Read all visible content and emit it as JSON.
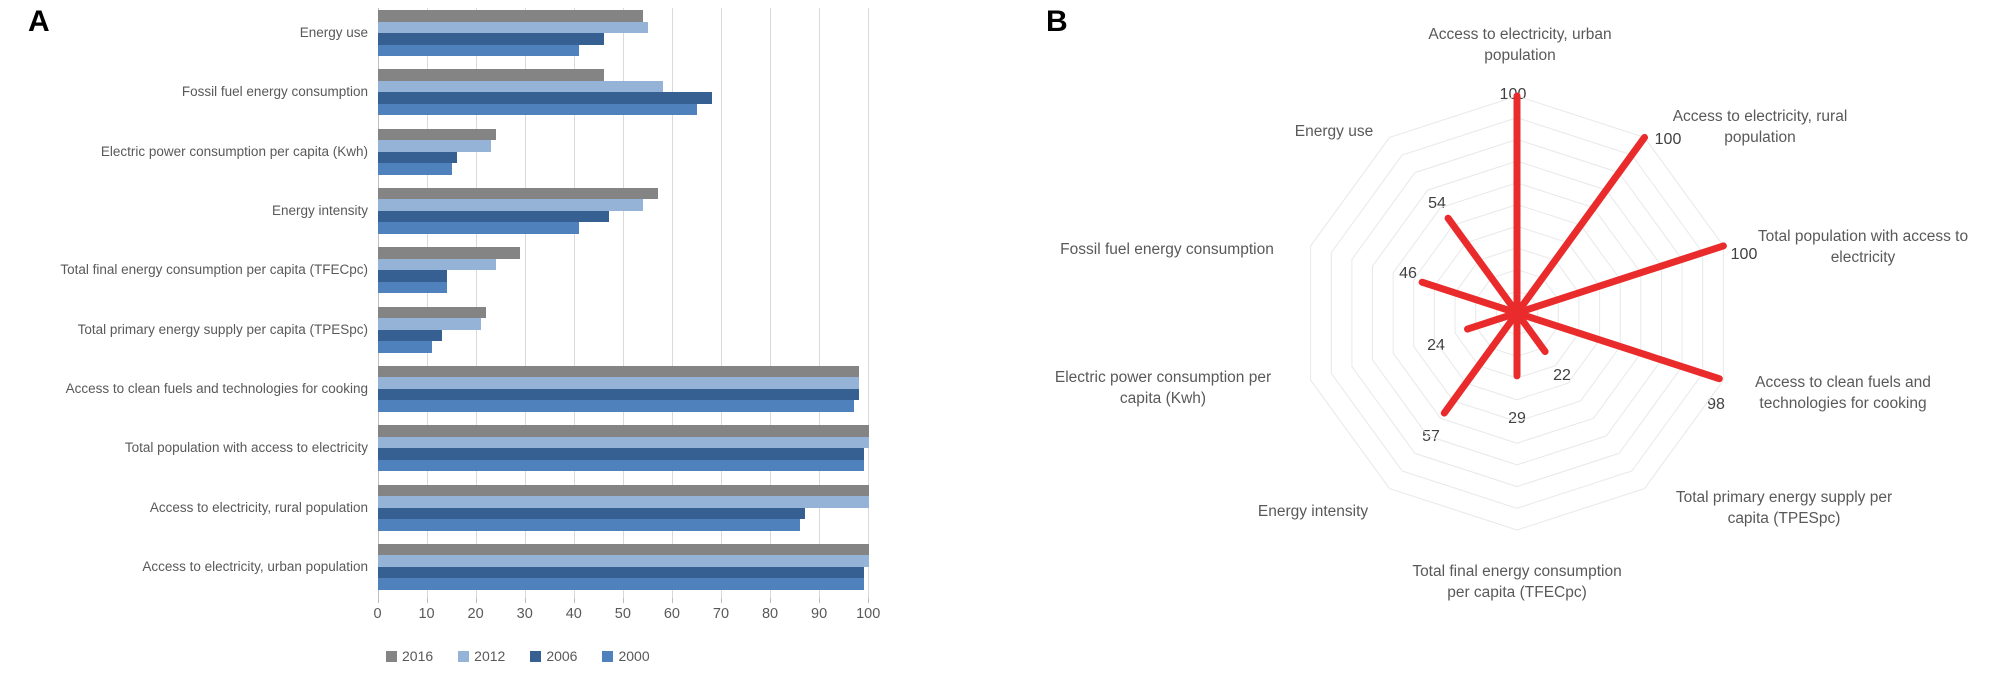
{
  "figure": {
    "panel_a_letter": "A",
    "panel_b_letter": "B"
  },
  "colors": {
    "series_2016": "#848484",
    "series_2012": "#95B3D7",
    "series_2006": "#376092",
    "series_2000": "#4F81BD",
    "radar_line": "#EA2B2C",
    "radar_ring": "#e8e8e8",
    "gridline": "#d9d9d9",
    "text": "#595959"
  },
  "chart_data": [
    {
      "type": "bar",
      "panel": "A",
      "orientation": "horizontal",
      "grid": true,
      "legend_position": "bottom",
      "xlim": [
        0,
        100
      ],
      "xticks": [
        0,
        10,
        20,
        30,
        40,
        50,
        60,
        70,
        80,
        90,
        100
      ],
      "categories": [
        "Energy use",
        "Fossil fuel energy consumption",
        "Electric power consumption per capita (Kwh)",
        "Energy intensity",
        "Total final energy consumption per capita (TFECpc)",
        "Total primary energy supply per capita (TPESpc)",
        "Access to clean fuels and technologies for cooking",
        "Total population with access to electricity",
        "Access to electricity, rural population",
        "Access to electricity, urban population"
      ],
      "series": [
        {
          "name": "2016",
          "color": "#848484",
          "values": [
            54,
            46,
            24,
            57,
            29,
            22,
            98,
            100,
            100,
            100
          ]
        },
        {
          "name": "2012",
          "color": "#95B3D7",
          "values": [
            55,
            58,
            23,
            54,
            24,
            21,
            98,
            100,
            100,
            100
          ]
        },
        {
          "name": "2006",
          "color": "#376092",
          "values": [
            46,
            68,
            16,
            47,
            14,
            13,
            98,
            99,
            87,
            99
          ]
        },
        {
          "name": "2000",
          "color": "#4F81BD",
          "values": [
            41,
            65,
            15,
            41,
            14,
            11,
            97,
            99,
            86,
            99
          ]
        }
      ]
    },
    {
      "type": "radar",
      "panel": "B",
      "max": 100,
      "rings": 10,
      "line_color": "#EA2B2C",
      "axes": [
        {
          "label": "Access to electricity, urban population",
          "label_display": "Access to electricity, urban\npopulation",
          "value": 100
        },
        {
          "label": "Access to electricity, rural population",
          "label_display": "Access to electricity, rural\npopulation",
          "value": 100
        },
        {
          "label": "Total population with access to electricity",
          "label_display": "Total population with access to\nelectricity",
          "value": 100
        },
        {
          "label": "Access to clean fuels and technologies for cooking",
          "label_display": "Access to clean fuels and\ntechnologies for cooking",
          "value": 98
        },
        {
          "label": "Total primary energy supply per capita (TPESpc)",
          "label_display": "Total primary energy supply per\ncapita (TPESpc)",
          "value": 22
        },
        {
          "label": "Total final energy consumption per capita (TFECpc)",
          "label_display": "Total final energy consumption\nper capita (TFECpc)",
          "value": 29
        },
        {
          "label": "Energy intensity",
          "label_display": "Energy intensity",
          "value": 57
        },
        {
          "label": "Electric power consumption per capita (Kwh)",
          "label_display": "Electric power consumption per\ncapita (Kwh)",
          "value": 24
        },
        {
          "label": "Fossil fuel energy consumption",
          "label_display": "Fossil fuel energy consumption",
          "value": 46
        },
        {
          "label": "Energy use",
          "label_display": "Energy use",
          "value": 54
        }
      ]
    }
  ]
}
